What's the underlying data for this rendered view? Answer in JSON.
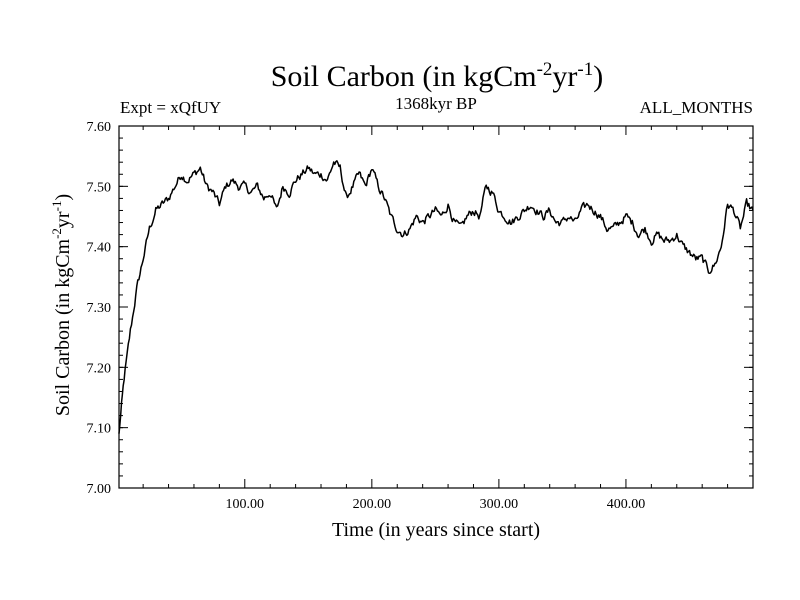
{
  "chart_data": {
    "type": "line",
    "title": "Soil Carbon (in kgCm",
    "title_sup1": "-2",
    "title_mid": "yr",
    "title_sup2": "-1",
    "title_end": ")",
    "subtitle_left": "Expt = xQfUY",
    "subtitle_center": "1368kyr BP",
    "subtitle_right": "ALL_MONTHS",
    "xlabel": "Time (in years since start)",
    "ylabel": "Soil Carbon (in kgCm",
    "ylabel_sup1": "-2",
    "ylabel_mid": "yr",
    "ylabel_sup2": "-1",
    "ylabel_end": ")",
    "xlim": [
      1,
      500
    ],
    "ylim": [
      7.0,
      7.6
    ],
    "xticks": [
      100,
      200,
      300,
      400
    ],
    "xtick_labels": [
      "100.00",
      "200.00",
      "300.00",
      "400.00"
    ],
    "yticks": [
      7.0,
      7.1,
      7.2,
      7.3,
      7.4,
      7.5,
      7.6
    ],
    "ytick_labels": [
      "7.00",
      "7.10",
      "7.20",
      "7.30",
      "7.40",
      "7.50",
      "7.60"
    ],
    "grid": false,
    "series": [
      {
        "name": "Soil Carbon",
        "color": "#000000",
        "x": [
          1,
          5,
          10,
          15,
          20,
          25,
          30,
          35,
          40,
          45,
          50,
          55,
          60,
          65,
          70,
          75,
          80,
          85,
          90,
          95,
          100,
          105,
          110,
          115,
          120,
          125,
          130,
          135,
          140,
          145,
          150,
          155,
          160,
          165,
          170,
          175,
          180,
          185,
          190,
          195,
          200,
          205,
          210,
          215,
          220,
          225,
          230,
          235,
          240,
          245,
          250,
          255,
          260,
          265,
          270,
          275,
          280,
          285,
          290,
          295,
          300,
          305,
          310,
          315,
          320,
          325,
          330,
          335,
          340,
          345,
          350,
          355,
          360,
          365,
          370,
          375,
          380,
          385,
          390,
          395,
          400,
          405,
          410,
          415,
          420,
          425,
          430,
          435,
          440,
          445,
          450,
          455,
          460,
          465,
          470,
          475,
          480,
          485,
          490,
          495,
          500
        ],
        "y": [
          7.09,
          7.18,
          7.26,
          7.33,
          7.38,
          7.43,
          7.46,
          7.47,
          7.48,
          7.5,
          7.52,
          7.51,
          7.52,
          7.53,
          7.5,
          7.49,
          7.47,
          7.5,
          7.51,
          7.5,
          7.5,
          7.49,
          7.5,
          7.48,
          7.49,
          7.46,
          7.5,
          7.49,
          7.51,
          7.52,
          7.53,
          7.52,
          7.52,
          7.51,
          7.54,
          7.53,
          7.48,
          7.5,
          7.52,
          7.5,
          7.53,
          7.5,
          7.48,
          7.45,
          7.43,
          7.42,
          7.43,
          7.45,
          7.44,
          7.45,
          7.46,
          7.45,
          7.47,
          7.44,
          7.43,
          7.45,
          7.46,
          7.45,
          7.5,
          7.49,
          7.46,
          7.45,
          7.44,
          7.45,
          7.46,
          7.47,
          7.46,
          7.45,
          7.46,
          7.44,
          7.44,
          7.45,
          7.44,
          7.46,
          7.47,
          7.46,
          7.45,
          7.43,
          7.43,
          7.44,
          7.45,
          7.44,
          7.42,
          7.43,
          7.41,
          7.42,
          7.41,
          7.41,
          7.42,
          7.4,
          7.39,
          7.38,
          7.38,
          7.36,
          7.37,
          7.4,
          7.47,
          7.46,
          7.43,
          7.47,
          7.46
        ]
      }
    ]
  }
}
